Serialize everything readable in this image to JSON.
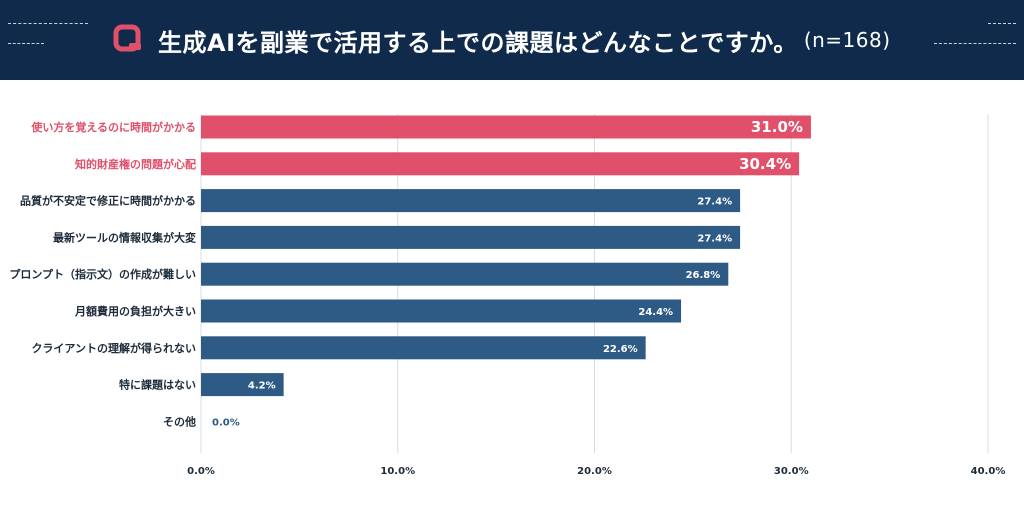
{
  "header": {
    "title": "生成AIを副業で活用する上での課題はどんなことですか。",
    "n": "(n=168)"
  },
  "colors": {
    "header_bg": "#0f2a4a",
    "highlight": "#e0506b",
    "bar": "#2e5a86",
    "grid": "#d9dde2"
  },
  "chart_data": {
    "type": "bar",
    "orientation": "horizontal",
    "categories": [
      "使い方を覚えるのに時間がかかる",
      "知的財産権の問題が心配",
      "品質が不安定で修正に時間がかかる",
      "最新ツールの情報収集が大変",
      "プロンプト（指示文）の作成が難しい",
      "月額費用の負担が大きい",
      "クライアントの理解が得られない",
      "特に課題はない",
      "その他"
    ],
    "values": [
      31.0,
      30.4,
      27.4,
      27.4,
      26.8,
      24.4,
      22.6,
      4.2,
      0.0
    ],
    "value_labels": [
      "31.0%",
      "30.4%",
      "27.4%",
      "27.4%",
      "26.8%",
      "24.4%",
      "22.6%",
      "4.2%",
      "0.0%"
    ],
    "highlighted": [
      true,
      true,
      false,
      false,
      false,
      false,
      false,
      false,
      false
    ],
    "xlim": [
      0,
      40
    ],
    "ticks": [
      0,
      10,
      20,
      30,
      40
    ],
    "tick_labels": [
      "0.0%",
      "10.0%",
      "20.0%",
      "30.0%",
      "40.0%"
    ],
    "grid": true
  }
}
